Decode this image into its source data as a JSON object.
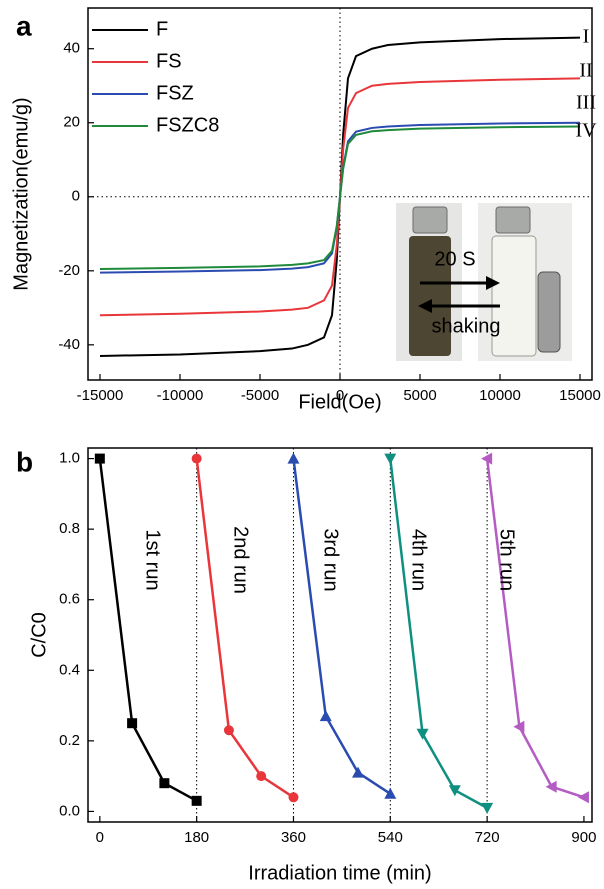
{
  "chart_data": [
    {
      "type": "line",
      "panel_label": "a",
      "x_label": "Field(Oe)",
      "y_label": "Magnetization(emu/g)",
      "x": [
        -15000,
        -10000,
        -5000,
        -3000,
        -2000,
        -1000,
        -500,
        -200,
        0,
        200,
        500,
        1000,
        2000,
        3000,
        5000,
        10000,
        15000
      ],
      "series": [
        {
          "name": "F",
          "color": "#000000",
          "values": [
            -43,
            -42.6,
            -41.7,
            -41,
            -40,
            -38,
            -32,
            -17,
            0,
            17,
            32,
            38,
            40,
            41,
            41.7,
            42.6,
            43
          ]
        },
        {
          "name": "FS",
          "color": "#e8363a",
          "values": [
            -32,
            -31.6,
            -31,
            -30.5,
            -30,
            -28,
            -24,
            -13,
            0,
            13,
            24,
            28,
            30,
            30.5,
            31,
            31.6,
            32
          ]
        },
        {
          "name": "FSZ",
          "color": "#2a4bb0",
          "values": [
            -20.5,
            -20.2,
            -19.8,
            -19.4,
            -19,
            -18,
            -15.3,
            -8.2,
            0,
            8,
            15,
            17.6,
            18.6,
            19,
            19.4,
            19.8,
            20
          ]
        },
        {
          "name": "FSZC8",
          "color": "#1f8a3a",
          "values": [
            -19.5,
            -19.2,
            -18.8,
            -18.4,
            -18,
            -17.1,
            -14.6,
            -7.8,
            0,
            7.6,
            14.3,
            16.7,
            17.7,
            18,
            18.4,
            18.8,
            19
          ]
        }
      ],
      "annotations": [
        "I",
        "II",
        "III",
        "IV"
      ],
      "inset_labels": [
        "20 S",
        "shaking"
      ],
      "xlim": [
        -15750,
        15750
      ],
      "xticks": [
        -15000,
        -10000,
        -5000,
        0,
        5000,
        10000,
        15000
      ],
      "ylim": [
        -49.5,
        51
      ],
      "yticks": [
        -40,
        -20,
        0,
        20,
        40
      ],
      "zero_lines": true
    },
    {
      "type": "line",
      "panel_label": "b",
      "x_label": "Irradiation time (min)",
      "y_label": "C/C0",
      "series": [
        {
          "name": "1st run",
          "color": "#000000",
          "marker": "square",
          "x": [
            0,
            60,
            120,
            180
          ],
          "values": [
            1.0,
            0.25,
            0.08,
            0.03
          ]
        },
        {
          "name": "2nd run",
          "color": "#e8363a",
          "marker": "circle",
          "x": [
            180,
            240,
            300,
            360
          ],
          "values": [
            1.0,
            0.23,
            0.1,
            0.04
          ]
        },
        {
          "name": "3rd run",
          "color": "#2a4bb0",
          "marker": "triangle-up",
          "x": [
            360,
            420,
            480,
            540
          ],
          "values": [
            1.0,
            0.27,
            0.11,
            0.05
          ]
        },
        {
          "name": "4th run",
          "color": "#0f8f80",
          "marker": "triangle-down",
          "x": [
            540,
            600,
            660,
            720
          ],
          "values": [
            1.0,
            0.22,
            0.06,
            0.01
          ]
        },
        {
          "name": "5th run",
          "color": "#b45bc4",
          "marker": "triangle-left",
          "x": [
            720,
            780,
            840,
            900
          ],
          "values": [
            1.0,
            0.24,
            0.07,
            0.04
          ]
        }
      ],
      "xlim": [
        -22,
        915
      ],
      "xticks": [
        0,
        180,
        360,
        540,
        720,
        900
      ],
      "ylim": [
        -0.03,
        1.03
      ],
      "yticks": [
        {
          "value": 0,
          "label": "0.0"
        },
        {
          "value": 0.2,
          "label": "0.2"
        },
        {
          "value": 0.4,
          "label": "0.4"
        },
        {
          "value": 0.6,
          "label": "0.6"
        },
        {
          "value": 0.8,
          "label": "0.8"
        },
        {
          "value": 1,
          "label": "1.0"
        }
      ],
      "run_separators": true
    }
  ]
}
